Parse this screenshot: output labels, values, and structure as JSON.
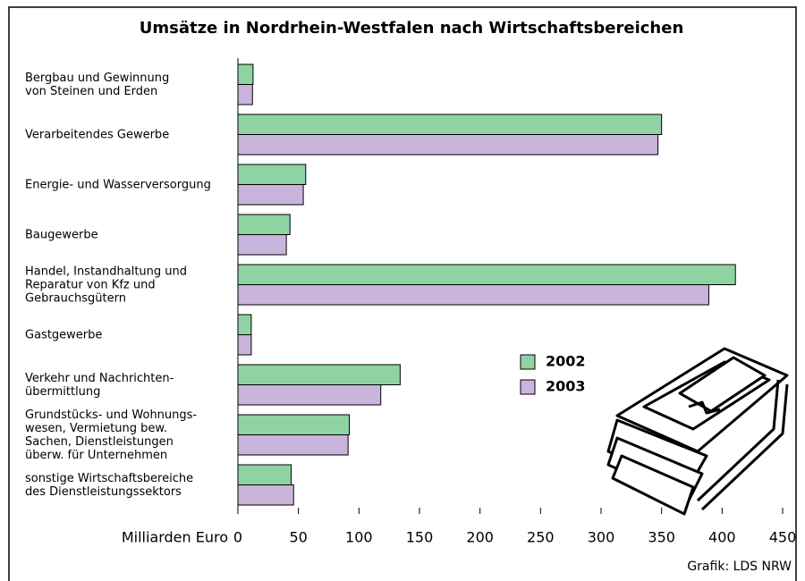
{
  "chart_data": {
    "type": "barh",
    "title": "Umsätze in Nordrhein-Westfalen nach Wirtschaftsbereichen",
    "xlabel": "Milliarden Euro",
    "source": "Grafik: LDS NRW",
    "categories": [
      "Bergbau und Gewinnung\nvon Steinen und Erden",
      "Verarbeitendes Gewerbe",
      "Energie- und Wasserversorgung",
      "Baugewerbe",
      "Handel, Instandhaltung und\nReparatur von Kfz und\nGebrauchsgütern",
      "Gastgewerbe",
      "Verkehr und Nachrichten-\nübermittlung",
      "Grundstücks- und Wohnungs-\nwesen, Vermietung bew.\nSachen, Dienstleistungen\nüberw. für Unternehmen",
      "sonstige Wirtschaftsbereiche\ndes Dienstleistungssektors"
    ],
    "series": [
      {
        "name": "2002",
        "color": "#8fd3a3",
        "values": [
          12.5,
          350,
          56,
          43,
          411,
          11,
          134,
          92,
          44
        ]
      },
      {
        "name": "2003",
        "color": "#c9b4dc",
        "values": [
          12,
          347,
          54,
          40,
          389,
          11,
          118,
          91,
          46
        ]
      }
    ],
    "xlim": [
      0,
      450
    ],
    "xticks": [
      0,
      50,
      100,
      150,
      200,
      250,
      300,
      350,
      400,
      450
    ]
  }
}
